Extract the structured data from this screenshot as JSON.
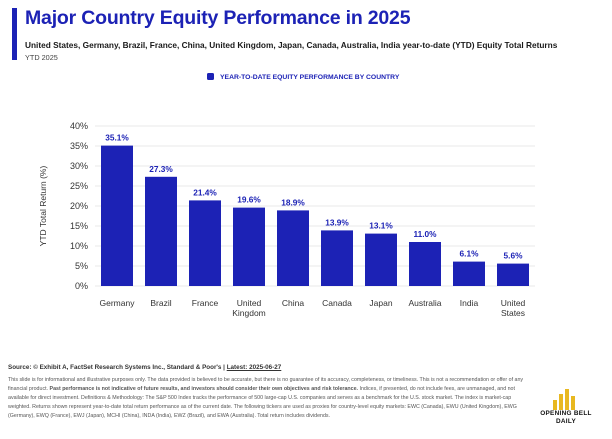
{
  "header": {
    "title": "Major Country Equity Performance in 2025",
    "subtitle": "United States, Germany, Brazil, France, China, United Kingdom, Japan, Canada, Australia, India year-to-date (YTD) Equity Total Returns",
    "period": "YTD 2025"
  },
  "colors": {
    "accent": "#1c22b5",
    "bar": "#1c22b5",
    "grid": "#e3e3e3",
    "text": "#222222",
    "logo_gold": "#e8b820"
  },
  "chart_data": {
    "type": "bar",
    "title": "",
    "legend": {
      "label": "YEAR-TO-DATE EQUITY PERFORMANCE BY COUNTRY",
      "placement": "top-center"
    },
    "xlabel": "",
    "ylabel": "YTD Total Return (%)",
    "ylim": [
      0,
      40
    ],
    "yticks": [
      0,
      5,
      10,
      15,
      20,
      25,
      30,
      35,
      40
    ],
    "grid": true,
    "categories": [
      [
        "Germany"
      ],
      [
        "Brazil"
      ],
      [
        "France"
      ],
      [
        "United",
        "Kingdom"
      ],
      [
        "China"
      ],
      [
        "Canada"
      ],
      [
        "Japan"
      ],
      [
        "Australia"
      ],
      [
        "India"
      ],
      [
        "United",
        "States"
      ]
    ],
    "values": [
      35.1,
      27.3,
      21.4,
      19.6,
      18.9,
      13.9,
      13.1,
      11.0,
      6.1,
      5.6
    ],
    "data_labels": [
      "35.1%",
      "27.3%",
      "21.4%",
      "19.6%",
      "18.9%",
      "13.9%",
      "13.1%",
      "11.0%",
      "6.1%",
      "5.6%"
    ]
  },
  "footer": {
    "source_prefix": "Source: © Exhibit A, FactSet Research Systems Inc., Standard & Poor's | ",
    "latest": "Latest: 2025-06-27",
    "disclaimer_a": "This slide is for informational and illustrative purposes only. The data provided is believed to be accurate, but there is no guarantee of its accuracy, completeness, or timeliness. This is not a recommendation or offer of any financial product. ",
    "disclaimer_bold": "Past performance is not indicative of future results, and investors should consider their own objectives and risk tolerance.",
    "disclaimer_b": " Indices, if presented, do not include fees, are unmanaged, and not available for direct investment. Definitions & Methodology: The S&P 500 Index tracks the performance of 500 large-cap U.S. companies and serves as a benchmark for the U.S. stock market. The index is market-cap weighted. Returns shown represent year-to-date total return performance as of the current date. The following tickers are used as proxies for country-level equity markets: EWC (Canada), EWU (United Kingdom), EWG (Germany), EWQ (France), EWJ (Japan), MCHI (China), INDA (India), EWZ (Brazil), and EWA (Australia). Total return includes dividends."
  },
  "logo": {
    "line1": "OPENING BELL",
    "line2": "DAILY"
  }
}
